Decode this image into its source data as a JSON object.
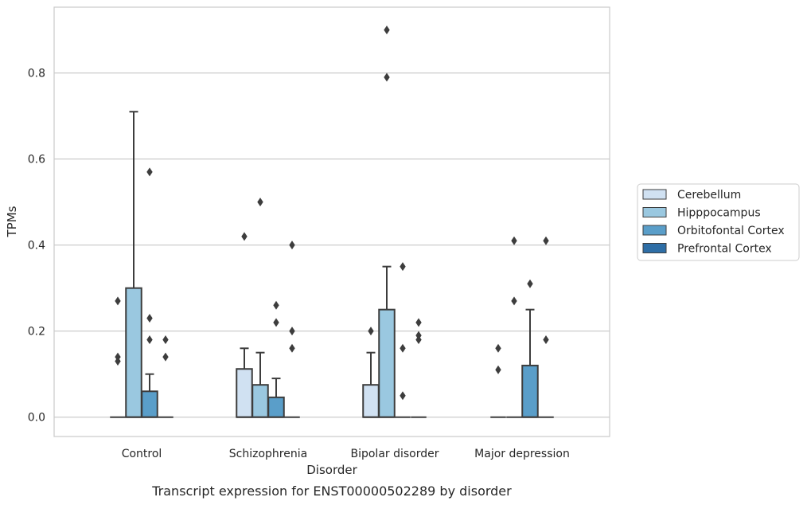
{
  "chart_data": {
    "type": "box",
    "caption": "Transcript expression for ENST00000502289 by disorder",
    "xlabel": "Disorder",
    "ylabel": "TPMs",
    "ylim": [
      -0.045,
      0.953
    ],
    "yticks": [
      "0.0",
      "0.2",
      "0.4",
      "0.6",
      "0.8"
    ],
    "grid": "horizontal",
    "legend_position": "right",
    "categories": [
      "Control",
      "Schizophrenia",
      "Bipolar disorder",
      "Major depression"
    ],
    "series": [
      {
        "name": "Cerebellum",
        "color": "#d0e1f2"
      },
      {
        "name": "Hipppocampus",
        "color": "#9ac8e0"
      },
      {
        "name": "Orbitofontal Cortex",
        "color": "#5a9ec9"
      },
      {
        "name": "Prefrontal Cortex",
        "color": "#2e6ea6"
      }
    ],
    "boxes": [
      [
        {
          "q1": 0,
          "q3": 0,
          "median": 0,
          "whisker_low": 0,
          "whisker_high": 0,
          "outliers": [
            0.27,
            0.14,
            0.13
          ]
        },
        {
          "q1": 0,
          "q3": 0.3,
          "median": 0,
          "whisker_low": 0,
          "whisker_high": 0.71,
          "outliers": []
        },
        {
          "q1": 0,
          "q3": 0.06,
          "median": 0,
          "whisker_low": 0,
          "whisker_high": 0.1,
          "outliers": [
            0.57,
            0.23,
            0.18
          ]
        },
        {
          "q1": 0,
          "q3": 0,
          "median": 0,
          "whisker_low": 0,
          "whisker_high": 0,
          "outliers": [
            0.18,
            0.14
          ]
        }
      ],
      [
        {
          "q1": 0,
          "q3": 0.112,
          "median": 0,
          "whisker_low": 0,
          "whisker_high": 0.16,
          "outliers": [
            0.42
          ]
        },
        {
          "q1": 0,
          "q3": 0.075,
          "median": 0,
          "whisker_low": 0,
          "whisker_high": 0.15,
          "outliers": [
            0.5
          ]
        },
        {
          "q1": 0,
          "q3": 0.046,
          "median": 0,
          "whisker_low": 0,
          "whisker_high": 0.09,
          "outliers": [
            0.26,
            0.22
          ]
        },
        {
          "q1": 0,
          "q3": 0,
          "median": 0,
          "whisker_low": 0,
          "whisker_high": 0,
          "outliers": [
            0.4,
            0.2,
            0.16
          ]
        }
      ],
      [
        {
          "q1": 0,
          "q3": 0.075,
          "median": 0,
          "whisker_low": 0,
          "whisker_high": 0.15,
          "outliers": [
            0.2
          ]
        },
        {
          "q1": 0,
          "q3": 0.25,
          "median": 0,
          "whisker_low": 0,
          "whisker_high": 0.35,
          "outliers": [
            0.9,
            0.79
          ]
        },
        {
          "q1": 0,
          "q3": 0,
          "median": 0,
          "whisker_low": 0,
          "whisker_high": 0,
          "outliers": [
            0.35,
            0.16,
            0.05
          ]
        },
        {
          "q1": 0,
          "q3": 0,
          "median": 0,
          "whisker_low": 0,
          "whisker_high": 0,
          "outliers": [
            0.22,
            0.19,
            0.18
          ]
        }
      ],
      [
        {
          "q1": 0,
          "q3": 0,
          "median": 0,
          "whisker_low": 0,
          "whisker_high": 0,
          "outliers": [
            0.16,
            0.11
          ]
        },
        {
          "q1": 0,
          "q3": 0,
          "median": 0,
          "whisker_low": 0,
          "whisker_high": 0,
          "outliers": [
            0.41,
            0.27
          ]
        },
        {
          "q1": 0,
          "q3": 0.12,
          "median": 0,
          "whisker_low": 0,
          "whisker_high": 0.25,
          "outliers": [
            0.31
          ]
        },
        {
          "q1": 0,
          "q3": 0,
          "median": 0,
          "whisker_low": 0,
          "whisker_high": 0,
          "outliers": [
            0.41,
            0.18
          ]
        }
      ]
    ]
  }
}
